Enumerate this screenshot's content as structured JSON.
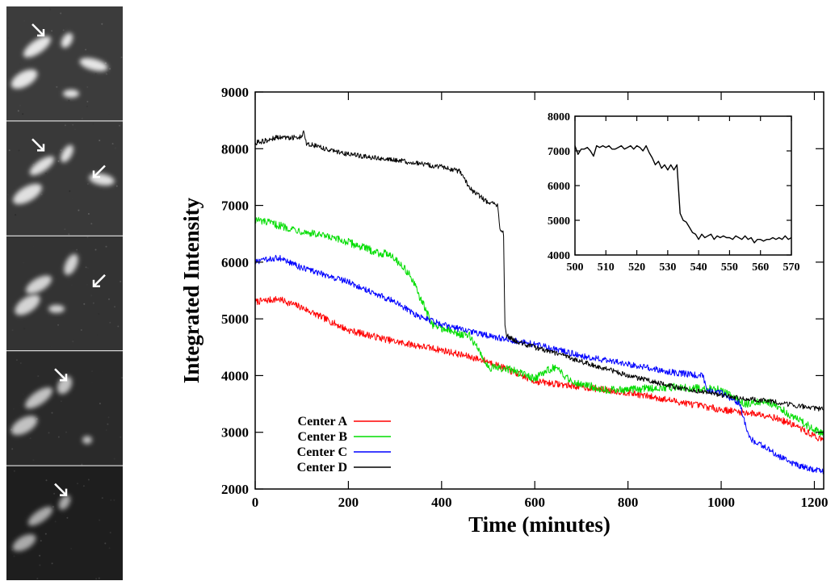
{
  "micrograph_panels": [
    {
      "arrows": [
        "down-right"
      ],
      "brightness": 1.0
    },
    {
      "arrows": [
        "down-right",
        "down-left"
      ],
      "brightness": 0.95
    },
    {
      "arrows": [
        "down-left"
      ],
      "brightness": 0.85
    },
    {
      "arrows": [
        "down-right"
      ],
      "brightness": 0.7
    },
    {
      "arrows": [
        "down-right"
      ],
      "brightness": 0.5
    }
  ],
  "colors": {
    "Center A": "#ff0000",
    "Center B": "#00dd00",
    "Center C": "#0000ff",
    "Center D": "#000000"
  },
  "chart_data": [
    {
      "type": "line",
      "xlabel": "Time (minutes)",
      "ylabel": "Integrated Intensity",
      "xlim": [
        0,
        1220
      ],
      "ylim": [
        2000,
        9000
      ],
      "xticks": [
        0,
        200,
        400,
        600,
        800,
        1000,
        1200
      ],
      "yticks": [
        2000,
        3000,
        4000,
        5000,
        6000,
        7000,
        8000,
        9000
      ],
      "legend_position": "lower-left",
      "series": [
        {
          "name": "Center A",
          "noise": 60,
          "points": [
            [
              0,
              5300
            ],
            [
              50,
              5350
            ],
            [
              100,
              5200
            ],
            [
              150,
              5000
            ],
            [
              200,
              4800
            ],
            [
              300,
              4600
            ],
            [
              400,
              4450
            ],
            [
              500,
              4250
            ],
            [
              600,
              3900
            ],
            [
              700,
              3800
            ],
            [
              800,
              3700
            ],
            [
              900,
              3550
            ],
            [
              1000,
              3400
            ],
            [
              1100,
              3300
            ],
            [
              1150,
              3150
            ],
            [
              1220,
              2850
            ]
          ]
        },
        {
          "name": "Center B",
          "noise": 70,
          "points": [
            [
              0,
              6750
            ],
            [
              100,
              6550
            ],
            [
              200,
              6350
            ],
            [
              270,
              6150
            ],
            [
              290,
              6150
            ],
            [
              330,
              5800
            ],
            [
              350,
              5450
            ],
            [
              380,
              4900
            ],
            [
              430,
              4750
            ],
            [
              460,
              4700
            ],
            [
              480,
              4450
            ],
            [
              500,
              4150
            ],
            [
              550,
              4100
            ],
            [
              600,
              3950
            ],
            [
              640,
              4150
            ],
            [
              680,
              3900
            ],
            [
              750,
              3750
            ],
            [
              800,
              3750
            ],
            [
              900,
              3800
            ],
            [
              1000,
              3750
            ],
            [
              1050,
              3500
            ],
            [
              1100,
              3550
            ],
            [
              1150,
              3300
            ],
            [
              1220,
              2950
            ]
          ]
        },
        {
          "name": "Center C",
          "noise": 55,
          "points": [
            [
              0,
              6000
            ],
            [
              50,
              6080
            ],
            [
              100,
              5900
            ],
            [
              200,
              5650
            ],
            [
              300,
              5300
            ],
            [
              350,
              5050
            ],
            [
              400,
              4900
            ],
            [
              500,
              4700
            ],
            [
              600,
              4550
            ],
            [
              700,
              4350
            ],
            [
              800,
              4200
            ],
            [
              900,
              4050
            ],
            [
              960,
              4000
            ],
            [
              970,
              3750
            ],
            [
              1000,
              3700
            ],
            [
              1040,
              3500
            ],
            [
              1060,
              2900
            ],
            [
              1100,
              2700
            ],
            [
              1150,
              2450
            ],
            [
              1220,
              2300
            ]
          ]
        },
        {
          "name": "Center D",
          "noise": 45,
          "points": [
            [
              0,
              8100
            ],
            [
              50,
              8200
            ],
            [
              100,
              8200
            ],
            [
              105,
              8300
            ],
            [
              110,
              8100
            ],
            [
              150,
              8000
            ],
            [
              200,
              7900
            ],
            [
              300,
              7800
            ],
            [
              400,
              7680
            ],
            [
              440,
              7600
            ],
            [
              460,
              7300
            ],
            [
              500,
              7050
            ],
            [
              520,
              7000
            ],
            [
              525,
              6600
            ],
            [
              533,
              6500
            ],
            [
              536,
              4900
            ],
            [
              540,
              4700
            ],
            [
              560,
              4600
            ],
            [
              600,
              4500
            ],
            [
              700,
              4250
            ],
            [
              800,
              4000
            ],
            [
              900,
              3800
            ],
            [
              1000,
              3650
            ],
            [
              1100,
              3550
            ],
            [
              1220,
              3400
            ]
          ]
        }
      ]
    },
    {
      "type": "line",
      "xlabel": "",
      "ylabel": "",
      "xlim": [
        500,
        570
      ],
      "ylim": [
        4000,
        8000
      ],
      "xticks": [
        500,
        510,
        520,
        530,
        540,
        550,
        560,
        570
      ],
      "yticks": [
        4000,
        5000,
        6000,
        7000,
        8000
      ],
      "series": [
        {
          "name": "Center D",
          "points": [
            [
              500,
              7150
            ],
            [
              501,
              6900
            ],
            [
              502,
              7050
            ],
            [
              503,
              7050
            ],
            [
              504,
              7100
            ],
            [
              505,
              7000
            ],
            [
              506,
              6850
            ],
            [
              507,
              7150
            ],
            [
              508,
              7100
            ],
            [
              509,
              7150
            ],
            [
              510,
              7100
            ],
            [
              511,
              7150
            ],
            [
              512,
              7050
            ],
            [
              513,
              7050
            ],
            [
              514,
              7100
            ],
            [
              515,
              7150
            ],
            [
              516,
              7050
            ],
            [
              517,
              7100
            ],
            [
              518,
              7150
            ],
            [
              519,
              7050
            ],
            [
              520,
              7150
            ],
            [
              521,
              7100
            ],
            [
              522,
              7000
            ],
            [
              523,
              7150
            ],
            [
              524,
              6950
            ],
            [
              525,
              6800
            ],
            [
              526,
              6600
            ],
            [
              527,
              6700
            ],
            [
              528,
              6500
            ],
            [
              529,
              6600
            ],
            [
              530,
              6450
            ],
            [
              531,
              6600
            ],
            [
              532,
              6450
            ],
            [
              533,
              6600
            ],
            [
              534,
              5200
            ],
            [
              535,
              5000
            ],
            [
              536,
              4950
            ],
            [
              537,
              4800
            ],
            [
              538,
              4650
            ],
            [
              539,
              4600
            ],
            [
              540,
              4450
            ],
            [
              541,
              4600
            ],
            [
              542,
              4500
            ],
            [
              543,
              4550
            ],
            [
              544,
              4600
            ],
            [
              545,
              4450
            ],
            [
              546,
              4550
            ],
            [
              547,
              4500
            ],
            [
              548,
              4550
            ],
            [
              549,
              4500
            ],
            [
              550,
              4500
            ],
            [
              551,
              4450
            ],
            [
              552,
              4550
            ],
            [
              553,
              4500
            ],
            [
              554,
              4450
            ],
            [
              555,
              4550
            ],
            [
              556,
              4450
            ],
            [
              557,
              4500
            ],
            [
              558,
              4350
            ],
            [
              559,
              4450
            ],
            [
              560,
              4450
            ],
            [
              561,
              4400
            ],
            [
              562,
              4450
            ],
            [
              563,
              4450
            ],
            [
              564,
              4500
            ],
            [
              565,
              4450
            ],
            [
              566,
              4500
            ],
            [
              567,
              4450
            ],
            [
              568,
              4550
            ],
            [
              569,
              4450
            ],
            [
              570,
              4500
            ]
          ]
        }
      ]
    }
  ]
}
